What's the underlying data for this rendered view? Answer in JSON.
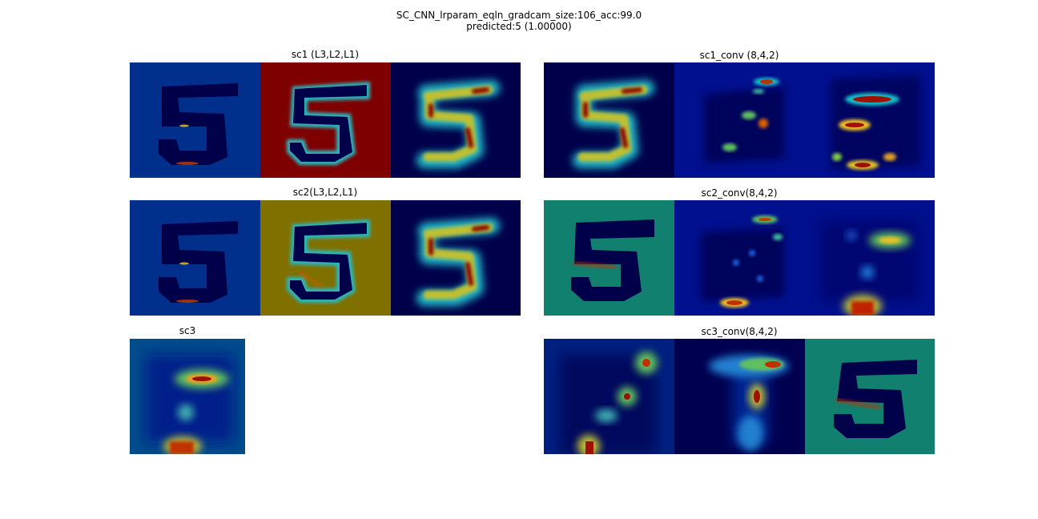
{
  "figure": {
    "title_line1": "SC_CNN_lrparam_eqln_gradcam_size:106_acc:99.0",
    "title_line2": "predicted:5 (1.00000)"
  },
  "axes": {
    "sc1": "sc1 (L3,L2,L1)",
    "sc1_conv": "sc1_conv (8,4,2)",
    "sc2": "sc2(L3,L2,L1)",
    "sc2_conv": "sc2_conv(8,4,2)",
    "sc3": "sc3",
    "sc3_conv": "sc3_conv(8,4,2)"
  },
  "colors": {
    "jet_dark_blue": "#00004c",
    "jet_blue": "#00008f",
    "jet_mid_blue": "#00309a",
    "jet_cyan": "#18c0c8",
    "jet_green": "#6ccb50",
    "jet_yellow": "#f2d224",
    "jet_orange": "#e8710a",
    "jet_dark_red": "#7f0000",
    "olive": "#807000",
    "teal": "#12806e"
  }
}
